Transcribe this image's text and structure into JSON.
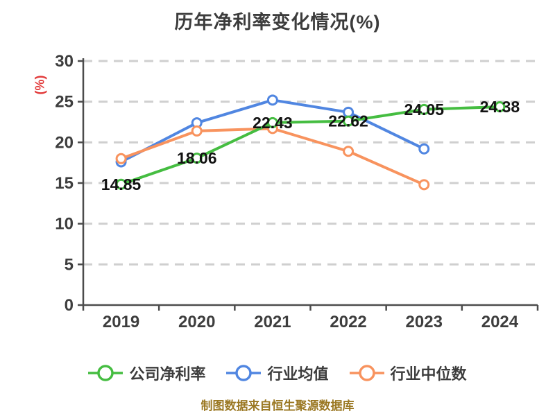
{
  "title": "历年净利率变化情况(%)",
  "y_axis_name": "(%)",
  "source_note": "制图数据来自恒生聚源数据库",
  "colors": {
    "title_text": "#3c3c3c",
    "axis_line": "#4c4c4c",
    "tick_text": "#3e3e3e",
    "gridline": "#cfcfcf",
    "data_label": "#121212",
    "y_axis_name": "#e23b3b",
    "source_note": "#9b7823",
    "series_company": "#45bd41",
    "series_industry_avg": "#5086e1",
    "series_industry_median": "#f8935e"
  },
  "chart_data": {
    "type": "line",
    "title": "历年净利率变化情况(%)",
    "categories": [
      "2019",
      "2020",
      "2021",
      "2022",
      "2023",
      "2024"
    ],
    "series": [
      {
        "key": "company-net-margin",
        "name": "公司净利率",
        "color": "#45bd41",
        "values": [
          14.85,
          18.06,
          22.43,
          22.62,
          24.05,
          24.38
        ],
        "labeled": true
      },
      {
        "key": "industry-average",
        "name": "行业均值",
        "color": "#5086e1",
        "values": [
          17.6,
          22.4,
          25.2,
          23.7,
          19.2,
          null
        ],
        "labeled": false
      },
      {
        "key": "industry-median",
        "name": "行业中位数",
        "color": "#f8935e",
        "values": [
          18.0,
          21.4,
          21.7,
          18.9,
          14.8,
          null
        ],
        "labeled": false
      }
    ],
    "xlabel": "",
    "ylabel": "(%)",
    "ylim": [
      0,
      30
    ],
    "y_ticks": [
      0,
      5,
      10,
      15,
      20,
      25,
      30
    ],
    "grid": "dashed-horizontal",
    "legend_position": "bottom",
    "marker": "open-circle"
  }
}
